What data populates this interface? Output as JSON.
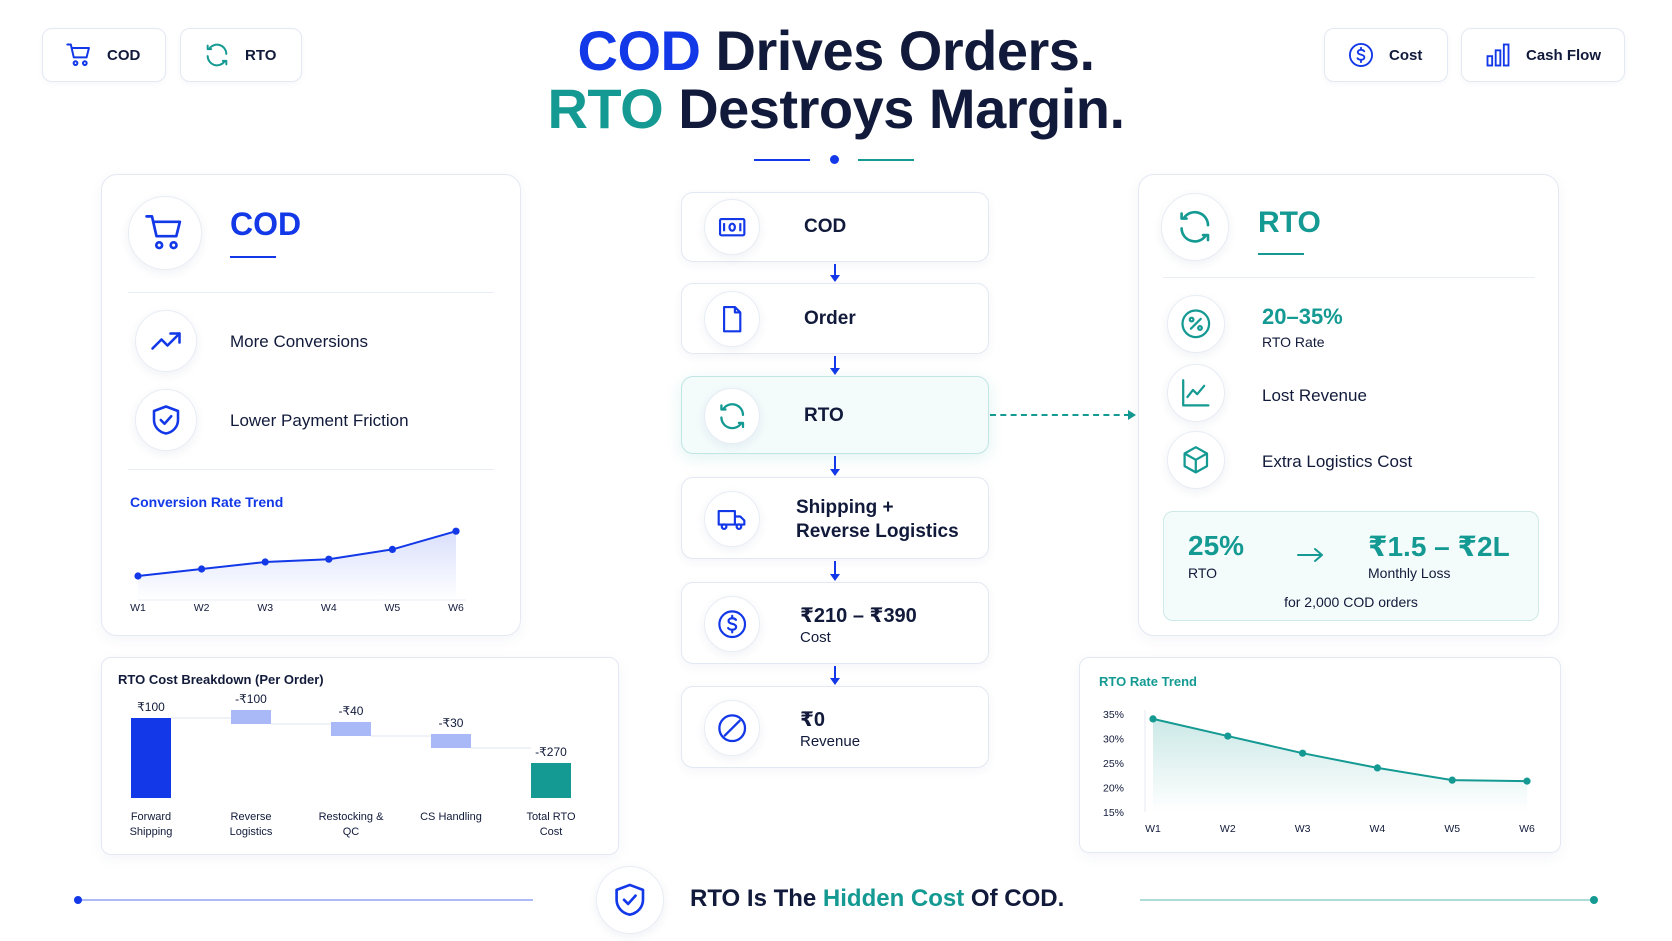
{
  "header": {
    "pills_left": [
      {
        "label": "COD",
        "icon": "cart-icon"
      },
      {
        "label": "RTO",
        "icon": "refresh-icon"
      }
    ],
    "pills_right": [
      {
        "label": "Cost",
        "icon": "dollar-icon"
      },
      {
        "label": "Cash Flow",
        "icon": "bar-chart-icon"
      }
    ],
    "title_line1_accent": "COD",
    "title_line1_rest": " Drives Orders.",
    "title_line2_accent": "RTO",
    "title_line2_rest": " Destroys Margin."
  },
  "cod_card": {
    "title": "COD",
    "features": [
      "More Conversions",
      "Lower Payment Friction"
    ],
    "trend_title": "Conversion Rate Trend"
  },
  "flow": [
    {
      "label": "COD",
      "icon": "cash-icon"
    },
    {
      "label": "Order",
      "icon": "document-icon"
    },
    {
      "label": "RTO",
      "icon": "refresh-icon"
    },
    {
      "label": "Shipping +\nReverse Logistics",
      "icon": "truck-icon"
    },
    {
      "label": "₹210 – ₹390",
      "sub": "Cost",
      "icon": "dollar-icon"
    },
    {
      "label": "₹0",
      "sub": "Revenue",
      "icon": "no-entry-icon"
    }
  ],
  "rto_card": {
    "title": "RTO",
    "items": [
      {
        "value": "20–35%",
        "label": "RTO Rate",
        "icon": "percent-icon"
      },
      {
        "label": "Lost Revenue",
        "icon": "line-chart-icon"
      },
      {
        "label": "Extra Logistics Cost",
        "icon": "box-icon"
      }
    ],
    "summary": {
      "left_value": "25%",
      "left_label": "RTO",
      "right_value": "₹1.5 – ₹2L",
      "right_label": "Monthly Loss",
      "note": "for 2,000 COD orders"
    }
  },
  "footer": {
    "tagline_before": "RTO Is The ",
    "tagline_accent": "Hidden Cost",
    "tagline_after": " Of COD."
  },
  "colors": {
    "blue": "#1238e8",
    "teal": "#149a92",
    "navy": "#111a3a",
    "light_blue": "#a9b8f6"
  },
  "chart_data": [
    {
      "type": "line",
      "title": "Conversion Rate Trend",
      "categories": [
        "W1",
        "W2",
        "W3",
        "W4",
        "W5",
        "W6"
      ],
      "values": [
        1.0,
        1.5,
        2.0,
        2.2,
        2.9,
        4.2
      ],
      "ylim": [
        0,
        5
      ],
      "grid": false
    },
    {
      "type": "bar",
      "title": "RTO Cost Breakdown (Per Order)",
      "subtype": "waterfall",
      "categories": [
        "Forward\nShipping",
        "Reverse\nLogistics",
        "Restocking &\nQC",
        "CS Handling",
        "Total RTO\nCost"
      ],
      "values": [
        100,
        -100,
        -40,
        -30,
        -270
      ],
      "data_labels": [
        "₹100",
        "-₹100",
        "-₹40",
        "-₹30",
        "-₹270"
      ]
    },
    {
      "type": "area",
      "title": "RTO Rate Trend",
      "categories": [
        "W1",
        "W2",
        "W3",
        "W4",
        "W5",
        "W6"
      ],
      "values": [
        34,
        30.5,
        27,
        24,
        21.5,
        21.3
      ],
      "ylim": [
        15,
        35
      ],
      "yticks": [
        "35%",
        "30%",
        "25%",
        "20%",
        "15%"
      ],
      "grid": false
    }
  ]
}
